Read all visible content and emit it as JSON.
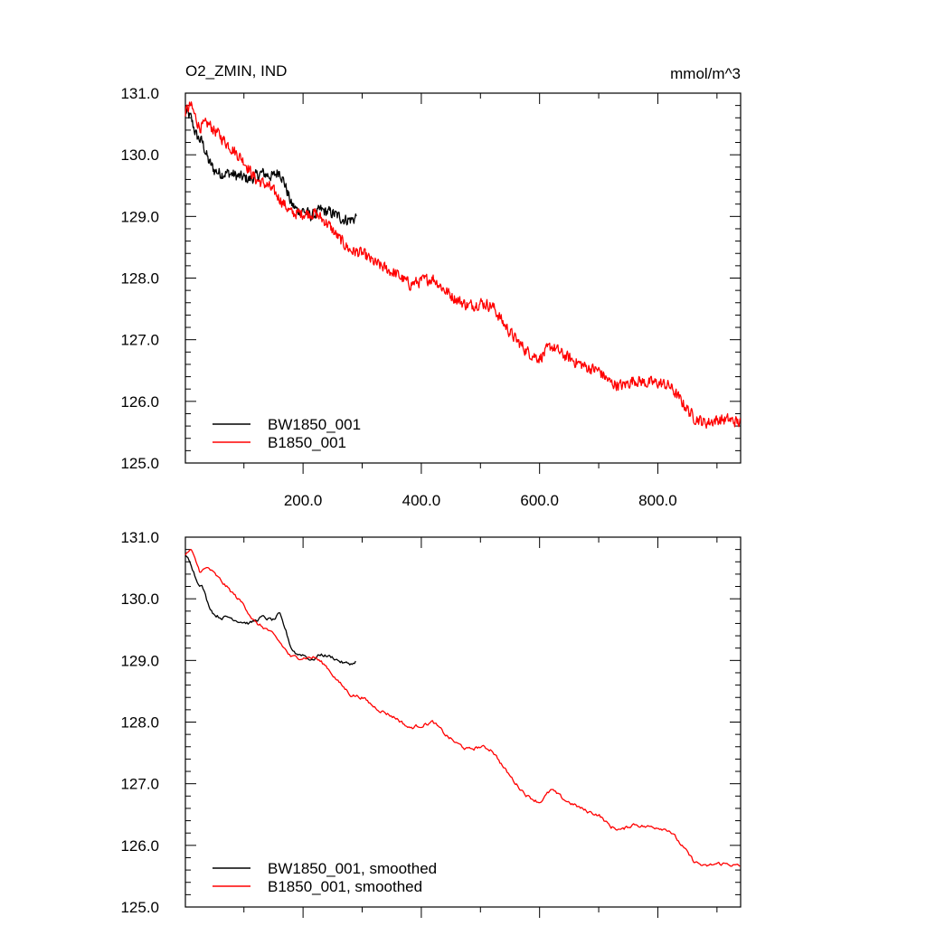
{
  "chart_data": [
    {
      "type": "line",
      "title": "O2_ZMIN, IND",
      "units": "mmol/m^3",
      "xlabel": "",
      "ylabel": "",
      "xlim": [
        1,
        940
      ],
      "ylim": [
        125.0,
        131.0
      ],
      "x_ticks": [
        200,
        400,
        600,
        800
      ],
      "x_tick_labels": [
        "200.0",
        "400.0",
        "600.0",
        "800.0"
      ],
      "y_ticks": [
        125,
        126,
        127,
        128,
        129,
        130,
        131
      ],
      "y_tick_labels": [
        "125.0",
        "126.0",
        "127.0",
        "128.0",
        "129.0",
        "130.0",
        "131.0"
      ],
      "grid": false,
      "legend_position": "bottom-left",
      "noisy": true,
      "series": [
        {
          "name": "BW1850_001",
          "color": "#000000",
          "x": [
            1,
            10,
            20,
            30,
            40,
            50,
            60,
            75,
            90,
            110,
            130,
            150,
            160,
            170,
            180,
            190,
            200,
            215,
            230,
            250,
            270,
            285,
            290
          ],
          "y": [
            130.7,
            130.6,
            130.3,
            130.2,
            129.9,
            129.75,
            129.7,
            129.7,
            129.65,
            129.6,
            129.7,
            129.65,
            129.75,
            129.5,
            129.2,
            129.1,
            129.1,
            129.0,
            129.1,
            129.05,
            128.95,
            128.95,
            129.0
          ]
        },
        {
          "name": "B1850_001",
          "color": "#ff0000",
          "x": [
            1,
            10,
            25,
            40,
            60,
            80,
            100,
            120,
            140,
            160,
            180,
            200,
            220,
            240,
            260,
            280,
            300,
            320,
            340,
            360,
            380,
            400,
            420,
            440,
            460,
            480,
            500,
            520,
            540,
            560,
            580,
            590,
            600,
            620,
            640,
            660,
            680,
            700,
            720,
            740,
            760,
            780,
            800,
            820,
            840,
            860,
            880,
            900,
            920,
            940
          ],
          "y": [
            130.7,
            130.8,
            130.45,
            130.5,
            130.3,
            130.1,
            129.9,
            129.6,
            129.5,
            129.3,
            129.05,
            129.05,
            129.05,
            128.9,
            128.65,
            128.45,
            128.4,
            128.25,
            128.15,
            128.05,
            127.9,
            127.95,
            128.0,
            127.8,
            127.65,
            127.55,
            127.6,
            127.55,
            127.25,
            127.0,
            126.8,
            126.75,
            126.7,
            126.9,
            126.75,
            126.65,
            126.55,
            126.5,
            126.3,
            126.25,
            126.35,
            126.3,
            126.3,
            126.25,
            126.0,
            125.75,
            125.65,
            125.7,
            125.7,
            125.65
          ]
        }
      ]
    },
    {
      "type": "line",
      "title": "",
      "xlabel": "",
      "ylabel": "",
      "xlim": [
        1,
        940
      ],
      "ylim": [
        125.0,
        131.0
      ],
      "x_ticks": [
        200,
        400,
        600,
        800
      ],
      "y_ticks": [
        125,
        126,
        127,
        128,
        129,
        130,
        131
      ],
      "y_tick_labels": [
        "125.0",
        "126.0",
        "127.0",
        "128.0",
        "129.0",
        "130.0",
        "131.0"
      ],
      "grid": false,
      "legend_position": "bottom-left",
      "noisy": false,
      "series": [
        {
          "name": "BW1850_001, smoothed",
          "color": "#000000",
          "x": [
            1,
            10,
            20,
            30,
            40,
            50,
            60,
            75,
            90,
            110,
            130,
            150,
            160,
            170,
            180,
            190,
            200,
            215,
            230,
            250,
            270,
            285,
            290
          ],
          "y": [
            130.7,
            130.6,
            130.3,
            130.2,
            129.9,
            129.75,
            129.7,
            129.7,
            129.65,
            129.6,
            129.7,
            129.65,
            129.75,
            129.5,
            129.2,
            129.1,
            129.1,
            129.0,
            129.1,
            129.05,
            128.95,
            128.95,
            129.0
          ]
        },
        {
          "name": "B1850_001, smoothed",
          "color": "#ff0000",
          "x": [
            1,
            10,
            25,
            40,
            60,
            80,
            100,
            120,
            140,
            160,
            180,
            200,
            220,
            240,
            260,
            280,
            300,
            320,
            340,
            360,
            380,
            400,
            420,
            440,
            460,
            480,
            500,
            520,
            540,
            560,
            580,
            590,
            600,
            620,
            640,
            660,
            680,
            700,
            720,
            740,
            760,
            780,
            800,
            820,
            840,
            860,
            880,
            900,
            920,
            940
          ],
          "y": [
            130.7,
            130.8,
            130.45,
            130.5,
            130.3,
            130.1,
            129.9,
            129.6,
            129.5,
            129.3,
            129.05,
            129.05,
            129.05,
            128.9,
            128.65,
            128.45,
            128.4,
            128.25,
            128.15,
            128.05,
            127.9,
            127.95,
            128.0,
            127.8,
            127.65,
            127.55,
            127.6,
            127.55,
            127.25,
            127.0,
            126.8,
            126.75,
            126.7,
            126.9,
            126.75,
            126.65,
            126.55,
            126.5,
            126.3,
            126.25,
            126.35,
            126.3,
            126.3,
            126.25,
            126.0,
            125.75,
            125.65,
            125.7,
            125.7,
            125.65
          ]
        }
      ]
    }
  ]
}
